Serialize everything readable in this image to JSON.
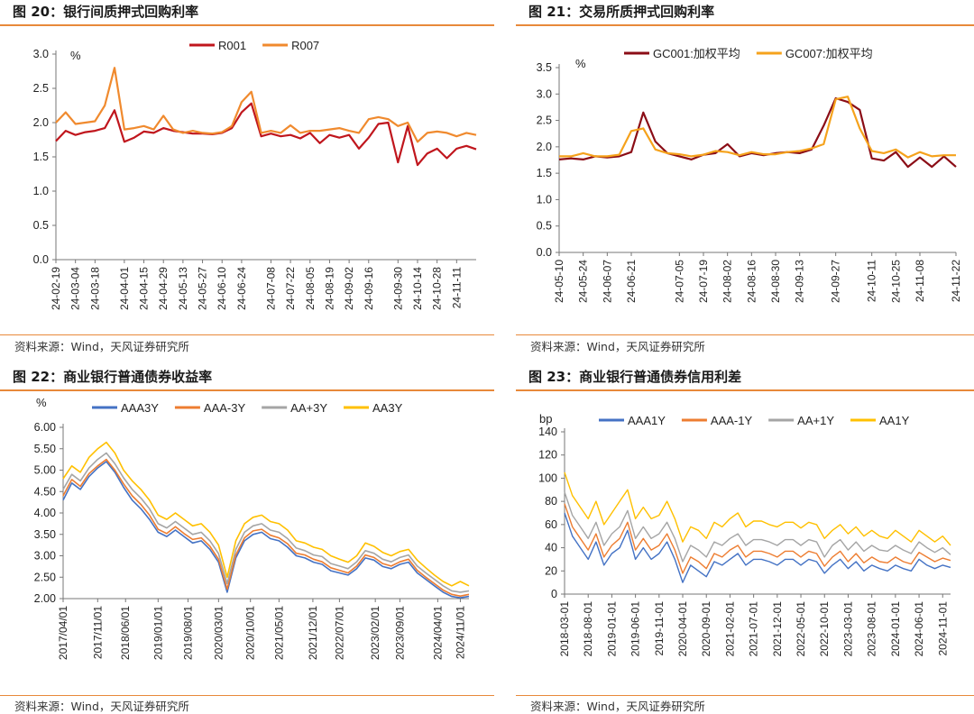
{
  "panels": [
    {
      "title": "图 20：银行间质押式回购利率",
      "source": "资料来源：Wind，天风证券研究所",
      "chart_data": {
        "type": "line",
        "unit": "%",
        "ylim": [
          0,
          3.0
        ],
        "yticks": [
          "0.0",
          "0.5",
          "1.0",
          "1.5",
          "2.0",
          "2.5",
          "3.0"
        ],
        "legend_position": "top",
        "grid": false,
        "x_tick_labels": [
          "24-02-19",
          "24-03-04",
          "24-03-18",
          "24-04-01",
          "24-04-15",
          "24-04-29",
          "24-05-13",
          "24-05-27",
          "24-06-10",
          "24-06-24",
          "24-07-08",
          "24-07-22",
          "24-08-05",
          "24-08-19",
          "24-09-02",
          "24-09-16",
          "24-09-30",
          "24-10-14",
          "24-10-28",
          "24-11-11"
        ],
        "x": [
          "24-02-19",
          "24-02-26",
          "24-03-04",
          "24-03-11",
          "24-03-18",
          "24-03-25",
          "24-03-29",
          "24-04-01",
          "24-04-08",
          "24-04-15",
          "24-04-22",
          "24-04-29",
          "24-05-06",
          "24-05-13",
          "24-05-20",
          "24-05-27",
          "24-06-03",
          "24-06-10",
          "24-06-17",
          "24-06-24",
          "24-06-28",
          "24-07-01",
          "24-07-08",
          "24-07-15",
          "24-07-22",
          "24-07-29",
          "24-08-05",
          "24-08-12",
          "24-08-19",
          "24-08-26",
          "24-09-02",
          "24-09-09",
          "24-09-16",
          "24-09-23",
          "24-09-27",
          "24-09-30",
          "24-10-08",
          "24-10-14",
          "24-10-21",
          "24-10-28",
          "24-11-04",
          "24-11-11",
          "24-11-18",
          "24-11-22"
        ],
        "series": [
          {
            "name": "R001",
            "color": "#c0161d",
            "values": [
              1.73,
              1.88,
              1.82,
              1.86,
              1.88,
              1.92,
              2.18,
              1.72,
              1.78,
              1.87,
              1.85,
              1.92,
              1.88,
              1.86,
              1.84,
              1.84,
              1.83,
              1.85,
              1.92,
              2.15,
              2.28,
              1.8,
              1.84,
              1.8,
              1.82,
              1.77,
              1.85,
              1.7,
              1.82,
              1.78,
              1.82,
              1.62,
              1.78,
              1.98,
              2.0,
              1.42,
              1.95,
              1.38,
              1.55,
              1.62,
              1.48,
              1.62,
              1.66,
              1.61
            ]
          },
          {
            "name": "R007",
            "color": "#f08a2e",
            "values": [
              2.0,
              2.15,
              1.98,
              2.0,
              2.02,
              2.25,
              2.8,
              1.9,
              1.92,
              1.95,
              1.9,
              2.1,
              1.9,
              1.85,
              1.88,
              1.85,
              1.84,
              1.86,
              1.95,
              2.3,
              2.45,
              1.85,
              1.88,
              1.85,
              1.96,
              1.85,
              1.88,
              1.88,
              1.9,
              1.92,
              1.88,
              1.85,
              2.05,
              2.08,
              2.05,
              1.95,
              2.0,
              1.72,
              1.85,
              1.87,
              1.85,
              1.8,
              1.85,
              1.82
            ]
          }
        ]
      }
    },
    {
      "title": "图 21：交易所质押式回购利率",
      "source": "资料来源：Wind，天风证券研究所",
      "chart_data": {
        "type": "line",
        "unit": "%",
        "ylim": [
          0,
          3.5
        ],
        "yticks": [
          "0.0",
          "0.5",
          "1.0",
          "1.5",
          "2.0",
          "2.5",
          "3.0",
          "3.5"
        ],
        "legend_position": "top",
        "grid": false,
        "x_tick_labels": [
          "24-05-10",
          "24-05-24",
          "24-06-07",
          "24-06-21",
          "24-07-05",
          "24-07-19",
          "24-08-02",
          "24-08-16",
          "24-08-30",
          "24-09-13",
          "24-09-27",
          "24-10-11",
          "24-10-25",
          "24-11-08",
          "24-11-22"
        ],
        "x": [
          "24-05-10",
          "24-05-17",
          "24-05-24",
          "24-05-31",
          "24-06-07",
          "24-06-14",
          "24-06-21",
          "24-06-24",
          "24-06-28",
          "24-07-01",
          "24-07-05",
          "24-07-12",
          "24-07-19",
          "24-07-26",
          "24-08-02",
          "24-08-09",
          "24-08-16",
          "24-08-23",
          "24-08-30",
          "24-09-06",
          "24-09-13",
          "24-09-20",
          "24-09-24",
          "24-09-27",
          "24-09-30",
          "24-10-08",
          "24-10-11",
          "24-10-18",
          "24-10-25",
          "24-11-01",
          "24-11-08",
          "24-11-15",
          "24-11-20",
          "24-11-22"
        ],
        "series": [
          {
            "name": "GC001:加权平均",
            "color": "#8b0d16",
            "values": [
              1.76,
              1.78,
              1.76,
              1.82,
              1.8,
              1.82,
              1.9,
              2.65,
              2.1,
              1.88,
              1.82,
              1.76,
              1.85,
              1.88,
              2.05,
              1.82,
              1.88,
              1.84,
              1.88,
              1.9,
              1.88,
              1.95,
              2.4,
              2.92,
              2.85,
              2.7,
              1.78,
              1.74,
              1.9,
              1.62,
              1.8,
              1.62,
              1.82,
              1.62
            ]
          },
          {
            "name": "GC007:加权平均",
            "color": "#f5a21c",
            "values": [
              1.82,
              1.82,
              1.88,
              1.82,
              1.82,
              1.85,
              2.3,
              2.35,
              1.95,
              1.88,
              1.86,
              1.82,
              1.85,
              1.92,
              1.9,
              1.84,
              1.9,
              1.86,
              1.86,
              1.9,
              1.92,
              1.97,
              2.05,
              2.9,
              2.95,
              2.35,
              1.92,
              1.88,
              1.95,
              1.8,
              1.9,
              1.82,
              1.84,
              1.84
            ]
          }
        ]
      }
    },
    {
      "title": "图 22：商业银行普通债券收益率",
      "source": "资料来源：Wind，天风证券研究所",
      "chart_data": {
        "type": "line",
        "unit": "%",
        "ylim": [
          2.0,
          6.0
        ],
        "yticks": [
          "2.00",
          "2.50",
          "3.00",
          "3.50",
          "4.00",
          "4.50",
          "5.00",
          "5.50",
          "6.00"
        ],
        "legend_position": "top",
        "grid": false,
        "x_tick_labels": [
          "2017/04/01",
          "2017/11/01",
          "2018/06/01",
          "2019/01/01",
          "2019/08/01",
          "2020/03/01",
          "2020/10/01",
          "2021/05/01",
          "2021/12/01",
          "2022/07/01",
          "2023/02/01",
          "2023/09/01",
          "2024/04/01",
          "2024/11/01"
        ],
        "x": [
          "2017/04/01",
          "2017/06/01",
          "2017/08/01",
          "2017/10/01",
          "2017/11/01",
          "2018/01/01",
          "2018/03/01",
          "2018/05/01",
          "2018/07/01",
          "2018/09/01",
          "2018/11/01",
          "2019/01/01",
          "2019/03/01",
          "2019/05/01",
          "2019/07/01",
          "2019/09/01",
          "2019/11/01",
          "2020/01/01",
          "2020/03/01",
          "2020/05/01",
          "2020/07/01",
          "2020/09/01",
          "2020/11/01",
          "2021/01/01",
          "2021/03/01",
          "2021/05/01",
          "2021/07/01",
          "2021/09/01",
          "2021/11/01",
          "2022/01/01",
          "2022/03/01",
          "2022/05/01",
          "2022/07/01",
          "2022/09/01",
          "2022/11/01",
          "2023/01/01",
          "2023/03/01",
          "2023/05/01",
          "2023/07/01",
          "2023/09/01",
          "2023/11/01",
          "2024/01/01",
          "2024/03/01",
          "2024/05/01",
          "2024/07/01",
          "2024/09/01",
          "2024/11/01",
          "2024/12/01"
        ],
        "series": [
          {
            "name": "AAA3Y",
            "color": "#4472c4",
            "values": [
              4.3,
              4.7,
              4.55,
              4.85,
              5.05,
              5.2,
              4.95,
              4.6,
              4.3,
              4.1,
              3.85,
              3.55,
              3.45,
              3.6,
              3.45,
              3.3,
              3.35,
              3.15,
              2.85,
              2.15,
              2.95,
              3.35,
              3.5,
              3.55,
              3.4,
              3.35,
              3.2,
              3.0,
              2.95,
              2.85,
              2.8,
              2.65,
              2.6,
              2.55,
              2.7,
              2.95,
              2.9,
              2.75,
              2.7,
              2.8,
              2.85,
              2.6,
              2.45,
              2.3,
              2.15,
              2.05,
              2.02,
              2.05
            ]
          },
          {
            "name": "AAA-3Y",
            "color": "#ed7d31",
            "values": [
              4.4,
              4.78,
              4.62,
              4.92,
              5.1,
              5.25,
              5.0,
              4.68,
              4.4,
              4.2,
              3.95,
              3.62,
              3.52,
              3.68,
              3.52,
              3.38,
              3.42,
              3.22,
              2.92,
              2.22,
              3.02,
              3.42,
              3.58,
              3.62,
              3.48,
              3.42,
              3.28,
              3.06,
              3.02,
              2.92,
              2.86,
              2.72,
              2.66,
              2.6,
              2.76,
              3.02,
              2.96,
              2.82,
              2.76,
              2.86,
              2.92,
              2.66,
              2.5,
              2.35,
              2.2,
              2.1,
              2.06,
              2.1
            ]
          },
          {
            "name": "AA+3Y",
            "color": "#a5a5a5",
            "values": [
              4.55,
              4.9,
              4.75,
              5.05,
              5.25,
              5.4,
              5.15,
              4.82,
              4.55,
              4.35,
              4.1,
              3.75,
              3.65,
              3.8,
              3.65,
              3.5,
              3.55,
              3.35,
              3.05,
              2.35,
              3.15,
              3.55,
              3.7,
              3.75,
              3.6,
              3.55,
              3.4,
              3.18,
              3.12,
              3.02,
              2.98,
              2.82,
              2.76,
              2.7,
              2.86,
              3.12,
              3.06,
              2.92,
              2.86,
              2.96,
              3.02,
              2.76,
              2.6,
              2.45,
              2.3,
              2.18,
              2.15,
              2.18
            ]
          },
          {
            "name": "AA3Y",
            "color": "#ffc000",
            "values": [
              4.8,
              5.1,
              4.95,
              5.3,
              5.5,
              5.65,
              5.4,
              5.0,
              4.75,
              4.55,
              4.3,
              3.95,
              3.85,
              4.0,
              3.85,
              3.7,
              3.75,
              3.55,
              3.25,
              2.5,
              3.35,
              3.75,
              3.9,
              3.95,
              3.8,
              3.75,
              3.6,
              3.35,
              3.3,
              3.2,
              3.15,
              3.0,
              2.92,
              2.85,
              3.0,
              3.3,
              3.22,
              3.08,
              3.0,
              3.1,
              3.15,
              2.9,
              2.72,
              2.55,
              2.4,
              2.3,
              2.4,
              2.3
            ]
          }
        ]
      }
    },
    {
      "title": "图 23：商业银行普通债券信用利差",
      "source": "资料来源：Wind，天风证券研究所",
      "chart_data": {
        "type": "line",
        "unit": "bp",
        "ylim": [
          0,
          140
        ],
        "yticks": [
          "0",
          "20",
          "40",
          "60",
          "80",
          "100",
          "120",
          "140"
        ],
        "legend_position": "top",
        "grid": false,
        "x_tick_labels": [
          "2018-03-01",
          "2018-08-01",
          "2019-01-01",
          "2019-06-01",
          "2019-11-01",
          "2020-04-01",
          "2020-09-01",
          "2021-02-01",
          "2021-07-01",
          "2021-12-01",
          "2022-05-01",
          "2022-10-01",
          "2023-03-01",
          "2023-08-01",
          "2024-01-01",
          "2024-06-01",
          "2024-11-01"
        ],
        "x": [
          "2018-03-01",
          "2018-05-01",
          "2018-07-01",
          "2018-08-01",
          "2018-10-01",
          "2018-12-01",
          "2019-01-01",
          "2019-03-01",
          "2019-05-01",
          "2019-06-01",
          "2019-08-01",
          "2019-10-01",
          "2019-11-01",
          "2020-01-01",
          "2020-03-01",
          "2020-04-01",
          "2020-06-01",
          "2020-08-01",
          "2020-09-01",
          "2020-11-01",
          "2021-01-01",
          "2021-02-01",
          "2021-04-01",
          "2021-06-01",
          "2021-07-01",
          "2021-09-01",
          "2021-11-01",
          "2021-12-01",
          "2022-02-01",
          "2022-04-01",
          "2022-05-01",
          "2022-07-01",
          "2022-09-01",
          "2022-10-01",
          "2022-12-01",
          "2023-02-01",
          "2023-03-01",
          "2023-05-01",
          "2023-07-01",
          "2023-08-01",
          "2023-10-01",
          "2023-12-01",
          "2024-01-01",
          "2024-03-01",
          "2024-05-01",
          "2024-06-01",
          "2024-08-01",
          "2024-10-01",
          "2024-11-01",
          "2024-12-01"
        ],
        "series": [
          {
            "name": "AAA1Y",
            "color": "#4472c4",
            "values": [
              70,
              50,
              40,
              30,
              45,
              25,
              35,
              40,
              55,
              30,
              40,
              30,
              35,
              45,
              30,
              10,
              25,
              20,
              15,
              28,
              25,
              30,
              35,
              25,
              30,
              30,
              28,
              25,
              30,
              30,
              25,
              30,
              28,
              18,
              25,
              30,
              22,
              28,
              20,
              25,
              22,
              20,
              25,
              22,
              20,
              30,
              25,
              22,
              25,
              23
            ]
          },
          {
            "name": "AAA-1Y",
            "color": "#ed7d31",
            "values": [
              78,
              58,
              48,
              38,
              52,
              32,
              42,
              48,
              62,
              38,
              48,
              38,
              42,
              52,
              38,
              18,
              32,
              28,
              22,
              35,
              32,
              38,
              42,
              32,
              37,
              37,
              35,
              32,
              37,
              37,
              32,
              37,
              35,
              24,
              32,
              37,
              28,
              35,
              27,
              32,
              28,
              27,
              32,
              28,
              26,
              36,
              32,
              28,
              31,
              29
            ]
          },
          {
            "name": "AA+1Y",
            "color": "#a5a5a5",
            "values": [
              88,
              68,
              58,
              48,
              62,
              42,
              52,
              58,
              72,
              48,
              58,
              48,
              52,
              62,
              48,
              28,
              42,
              38,
              32,
              45,
              42,
              48,
              52,
              42,
              47,
              47,
              45,
              42,
              47,
              47,
              42,
              47,
              45,
              32,
              42,
              47,
              38,
              45,
              37,
              42,
              38,
              37,
              42,
              38,
              35,
              45,
              40,
              36,
              40,
              34
            ]
          },
          {
            "name": "AA1Y",
            "color": "#ffc000",
            "values": [
              105,
              85,
              75,
              65,
              80,
              60,
              70,
              80,
              90,
              65,
              75,
              65,
              68,
              80,
              65,
              45,
              58,
              55,
              48,
              62,
              58,
              65,
              70,
              58,
              63,
              63,
              60,
              58,
              62,
              62,
              57,
              62,
              60,
              48,
              55,
              60,
              52,
              58,
              50,
              55,
              50,
              48,
              55,
              50,
              45,
              55,
              50,
              45,
              50,
              42
            ]
          }
        ]
      }
    }
  ]
}
